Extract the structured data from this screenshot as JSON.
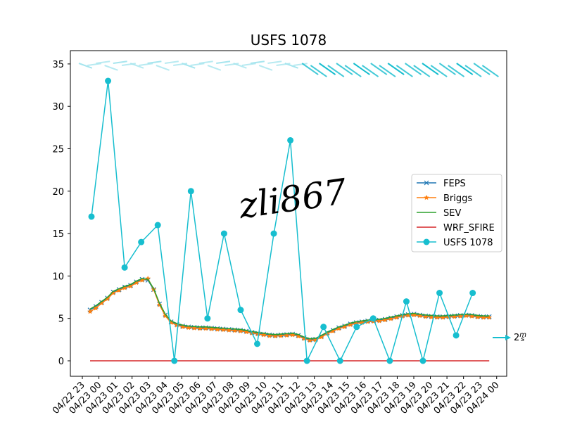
{
  "chart_data": {
    "type": "line",
    "title": "USFS 1078",
    "xlabel": "",
    "ylabel": "",
    "ylim": [
      -1.8,
      36.5
    ],
    "yticks": [
      0,
      5,
      10,
      15,
      20,
      25,
      30,
      35
    ],
    "x_tick_labels": [
      "04/22 23",
      "04/23 00",
      "04/23 01",
      "04/23 02",
      "04/23 03",
      "04/23 04",
      "04/23 05",
      "04/23 06",
      "04/23 07",
      "04/23 08",
      "04/23 09",
      "04/23 10",
      "04/23 11",
      "04/23 12",
      "04/23 13",
      "04/23 14",
      "04/23 15",
      "04/23 16",
      "04/23 17",
      "04/23 18",
      "04/23 19",
      "04/23 20",
      "04/23 21",
      "04/23 22",
      "04/23 23",
      "04/24 00"
    ],
    "legend_position": "center-right",
    "grid": false,
    "series": [
      {
        "name": "FEPS",
        "color": "#1f77b4",
        "marker": "x",
        "values": [
          6.0,
          6.4,
          6.9,
          7.4,
          8.1,
          8.4,
          8.7,
          8.9,
          9.3,
          9.6,
          9.5,
          8.4,
          6.7,
          5.4,
          4.6,
          4.3,
          4.1,
          4.0,
          3.95,
          3.9,
          3.9,
          3.85,
          3.8,
          3.75,
          3.7,
          3.65,
          3.6,
          3.5,
          3.35,
          3.25,
          3.15,
          3.05,
          3.0,
          3.05,
          3.1,
          3.15,
          3.0,
          2.7,
          2.5,
          2.55,
          2.9,
          3.3,
          3.6,
          3.9,
          4.1,
          4.35,
          4.5,
          4.6,
          4.7,
          4.75,
          4.8,
          4.9,
          5.05,
          5.2,
          5.35,
          5.45,
          5.5,
          5.4,
          5.3,
          5.25,
          5.2,
          5.2,
          5.25,
          5.3,
          5.35,
          5.4,
          5.35,
          5.25,
          5.2,
          5.2
        ]
      },
      {
        "name": "Briggs",
        "color": "#ff7f0e",
        "marker": "star",
        "values": [
          5.8,
          6.2,
          6.8,
          7.3,
          8.0,
          8.3,
          8.6,
          8.8,
          9.2,
          9.5,
          9.7,
          8.4,
          6.6,
          5.3,
          4.5,
          4.2,
          4.0,
          3.9,
          3.85,
          3.8,
          3.8,
          3.75,
          3.7,
          3.65,
          3.6,
          3.55,
          3.5,
          3.4,
          3.25,
          3.15,
          3.05,
          2.95,
          2.9,
          2.95,
          3.0,
          3.05,
          2.9,
          2.6,
          2.4,
          2.45,
          2.8,
          3.2,
          3.5,
          3.8,
          4.0,
          4.25,
          4.4,
          4.5,
          4.6,
          4.65,
          4.7,
          4.8,
          4.95,
          5.1,
          5.25,
          5.35,
          5.4,
          5.3,
          5.2,
          5.15,
          5.1,
          5.1,
          5.15,
          5.2,
          5.25,
          5.3,
          5.25,
          5.15,
          5.1,
          5.1
        ]
      },
      {
        "name": "SEV",
        "color": "#2ca02c",
        "marker": "none",
        "values": [
          6.1,
          6.5,
          7.0,
          7.5,
          8.2,
          8.5,
          8.8,
          9.0,
          9.4,
          9.7,
          9.6,
          8.5,
          6.8,
          5.5,
          4.7,
          4.4,
          4.2,
          4.1,
          4.05,
          4.0,
          4.0,
          3.95,
          3.9,
          3.85,
          3.8,
          3.75,
          3.7,
          3.6,
          3.45,
          3.35,
          3.25,
          3.15,
          3.1,
          3.15,
          3.2,
          3.25,
          3.1,
          2.8,
          2.6,
          2.65,
          3.0,
          3.4,
          3.7,
          4.0,
          4.2,
          4.45,
          4.6,
          4.7,
          4.8,
          4.85,
          4.9,
          5.0,
          5.15,
          5.3,
          5.45,
          5.55,
          5.6,
          5.5,
          5.4,
          5.35,
          5.3,
          5.3,
          5.35,
          5.4,
          5.45,
          5.5,
          5.45,
          5.35,
          5.3,
          5.3
        ]
      },
      {
        "name": "WRF_SFIRE",
        "color": "#d62728",
        "marker": "none",
        "values": [
          0,
          0,
          0,
          0,
          0,
          0,
          0,
          0,
          0,
          0,
          0,
          0,
          0,
          0,
          0,
          0,
          0,
          0,
          0,
          0,
          0,
          0,
          0,
          0,
          0,
          0,
          0,
          0,
          0,
          0,
          0,
          0,
          0,
          0,
          0,
          0,
          0,
          0,
          0,
          0,
          0,
          0,
          0,
          0,
          0,
          0,
          0,
          0,
          0,
          0,
          0,
          0,
          0,
          0,
          0,
          0,
          0,
          0,
          0,
          0,
          0,
          0,
          0,
          0,
          0,
          0,
          0,
          0,
          0,
          0
        ]
      },
      {
        "name": "USFS 1078",
        "color": "#17becf",
        "marker": "circle",
        "values": [
          17,
          33,
          11,
          14,
          16,
          0,
          20,
          5,
          15,
          6,
          2,
          15,
          26,
          0,
          4,
          0,
          4,
          5,
          0,
          7,
          0,
          8,
          3,
          8
        ]
      }
    ],
    "wind_label": "2m/s",
    "watermark": "zli867"
  }
}
